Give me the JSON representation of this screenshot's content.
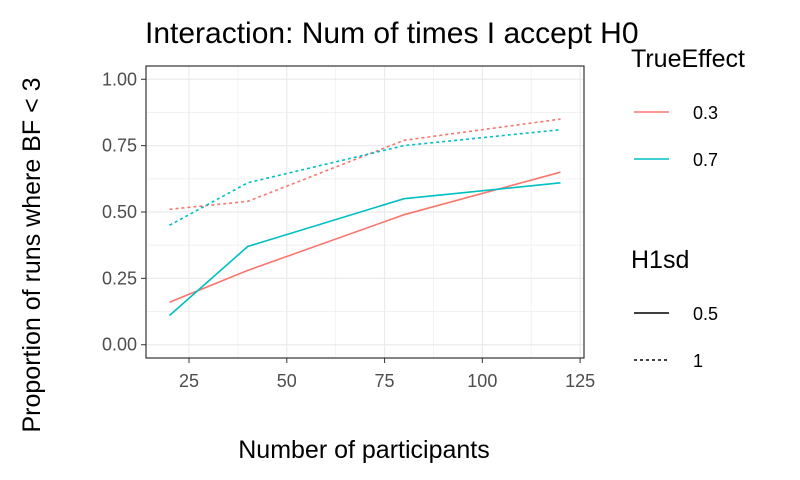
{
  "chart_data": {
    "type": "line",
    "title": "Interaction: Num of times I accept H0",
    "xlabel": "Number of participants",
    "ylabel": "Proportion of runs where BF < 3",
    "xlim": [
      14,
      126
    ],
    "ylim": [
      -0.05,
      1.05
    ],
    "x_ticks": [
      25,
      50,
      75,
      100,
      125
    ],
    "x_tick_labels": [
      "25",
      "50",
      "75",
      "100",
      "125"
    ],
    "y_ticks": [
      0,
      0.25,
      0.5,
      0.75,
      1.0
    ],
    "y_tick_labels": [
      "0.00",
      "0.25",
      "0.50",
      "0.75",
      "1.00"
    ],
    "grid": true,
    "legend_placement": "right",
    "colors": {
      "0.3": "#F8766D",
      "0.7": "#00BFC4"
    },
    "legends": [
      {
        "title": "TrueEffect",
        "entries": [
          {
            "label": "0.3",
            "color": "#F8766D"
          },
          {
            "label": "0.7",
            "color": "#00BFC4"
          }
        ]
      },
      {
        "title": "H1sd",
        "entries": [
          {
            "label": "0.5",
            "linetype": "solid"
          },
          {
            "label": "1",
            "linetype": "dotted"
          }
        ]
      }
    ],
    "series": [
      {
        "TrueEffect": "0.3",
        "H1sd": "0.5",
        "color": "#F8766D",
        "linetype": "solid",
        "x": [
          20,
          40,
          80,
          120
        ],
        "y": [
          0.16,
          0.28,
          0.49,
          0.65
        ]
      },
      {
        "TrueEffect": "0.7",
        "H1sd": "0.5",
        "color": "#00BFC4",
        "linetype": "solid",
        "x": [
          20,
          40,
          80,
          120
        ],
        "y": [
          0.11,
          0.37,
          0.55,
          0.61
        ]
      },
      {
        "TrueEffect": "0.3",
        "H1sd": "1",
        "color": "#F8766D",
        "linetype": "dotted",
        "x": [
          20,
          40,
          80,
          120
        ],
        "y": [
          0.51,
          0.54,
          0.77,
          0.85
        ]
      },
      {
        "TrueEffect": "0.7",
        "H1sd": "1",
        "color": "#00BFC4",
        "linetype": "dotted",
        "x": [
          20,
          40,
          80,
          120
        ],
        "y": [
          0.45,
          0.61,
          0.75,
          0.81
        ]
      }
    ]
  }
}
